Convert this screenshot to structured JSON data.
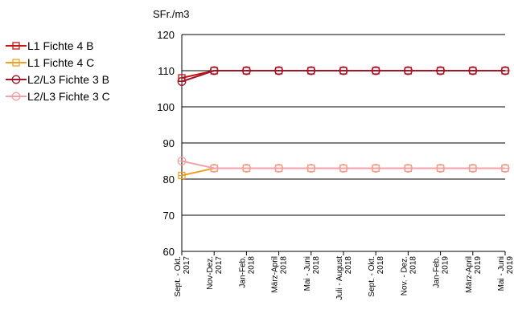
{
  "chart_data": {
    "type": "line",
    "title": "",
    "ylabel": "SFr./m3",
    "ylim": [
      60,
      120
    ],
    "yticks": [
      60,
      70,
      80,
      90,
      100,
      110,
      120
    ],
    "grid": true,
    "legend_position": "left",
    "categories": [
      [
        "Sept. - Okt.",
        "2017"
      ],
      [
        "Nov-Dez.",
        "2017"
      ],
      [
        "Jan-Feb.",
        "2018"
      ],
      [
        "März-April",
        "2018"
      ],
      [
        "Mai - Juni",
        "2018"
      ],
      [
        "Juli - August",
        "2018"
      ],
      [
        "Sept. - Okt.",
        "2018"
      ],
      [
        "Nov. - Dez.",
        "2018"
      ],
      [
        "Jan-Feb.",
        "2019"
      ],
      [
        "März-April",
        "2019"
      ],
      [
        "Mai - Juni",
        "2019"
      ]
    ],
    "series": [
      {
        "name": "L1 Fichte 4 B",
        "color": "#cc1111",
        "marker": "square",
        "values": [
          108,
          110,
          110,
          110,
          110,
          110,
          110,
          110,
          110,
          110,
          110
        ]
      },
      {
        "name": "L1 Fichte 4 C",
        "color": "#f0a020",
        "marker": "square",
        "values": [
          81,
          83,
          83,
          83,
          83,
          83,
          83,
          83,
          83,
          83,
          83
        ]
      },
      {
        "name": "L2/L3 Fichte 3 B",
        "color": "#a0182a",
        "marker": "circle",
        "values": [
          107,
          110,
          110,
          110,
          110,
          110,
          110,
          110,
          110,
          110,
          110
        ]
      },
      {
        "name": "L2/L3 Fichte 3 C",
        "color": "#f4a0a8",
        "marker": "circle",
        "values": [
          85,
          83,
          83,
          83,
          83,
          83,
          83,
          83,
          83,
          83,
          83
        ]
      }
    ]
  }
}
